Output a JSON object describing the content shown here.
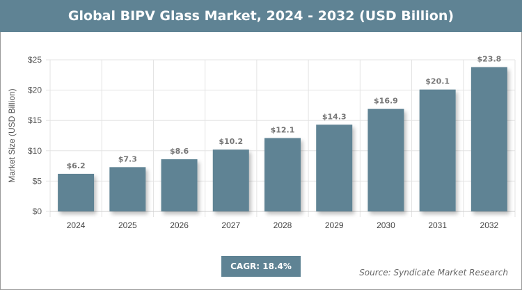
{
  "chart_data": {
    "type": "bar",
    "title": "Global BIPV Glass Market, 2024 - 2032 (USD Billion)",
    "categories": [
      "2024",
      "2025",
      "2026",
      "2027",
      "2028",
      "2029",
      "2030",
      "2031",
      "2032"
    ],
    "values": [
      6.2,
      7.3,
      8.6,
      10.2,
      12.1,
      14.3,
      16.9,
      20.1,
      23.8
    ],
    "data_labels": [
      "$6.2",
      "$7.3",
      "$8.6",
      "$10.2",
      "$12.1",
      "$14.3",
      "$16.9",
      "$20.1",
      "$23.8"
    ],
    "ylabel": "Market Size (USD Billion)",
    "xlabel": "",
    "ylim": [
      0,
      25
    ],
    "yticks": [
      0,
      5,
      10,
      15,
      20,
      25
    ],
    "ytick_labels": [
      "$0",
      "$5",
      "$10",
      "$15",
      "$20",
      "$25"
    ],
    "grid": true,
    "bar_color": "#5f8394"
  },
  "cagr": "CAGR: 18.4%",
  "source": "Source: Syndicate Market Research"
}
